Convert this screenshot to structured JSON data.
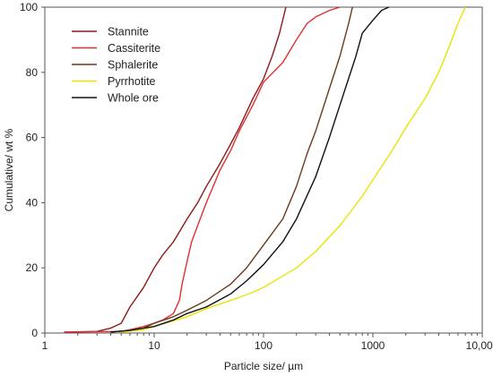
{
  "chart_data": {
    "type": "line",
    "xlabel": "Particle size/ µm",
    "ylabel": "Cumulative/ wt %",
    "xscale": "log",
    "xlim": [
      1,
      10000
    ],
    "ylim": [
      0,
      100
    ],
    "x_ticks": [
      1,
      10,
      100,
      1000,
      10000
    ],
    "x_tick_labels": [
      "1",
      "10",
      "100",
      "1000",
      "10,000"
    ],
    "y_ticks": [
      0,
      20,
      40,
      60,
      80,
      100
    ],
    "y_tick_labels": [
      "0",
      "20",
      "40",
      "60",
      "80",
      "100"
    ],
    "grid": false,
    "legend_position": "top-left",
    "series": [
      {
        "name": "Stannite",
        "color": "#8B1A1A",
        "points": [
          [
            1.5,
            0.3
          ],
          [
            3,
            0.5
          ],
          [
            4,
            1.5
          ],
          [
            5,
            3
          ],
          [
            6,
            8
          ],
          [
            8,
            14
          ],
          [
            10,
            20
          ],
          [
            12,
            24
          ],
          [
            15,
            28
          ],
          [
            20,
            35
          ],
          [
            25,
            40
          ],
          [
            30,
            45
          ],
          [
            40,
            52
          ],
          [
            50,
            58
          ],
          [
            60,
            63
          ],
          [
            80,
            72
          ],
          [
            100,
            78
          ],
          [
            120,
            85
          ],
          [
            140,
            92
          ],
          [
            160,
            100
          ]
        ]
      },
      {
        "name": "Cassiterite",
        "color": "#E03030",
        "points": [
          [
            1.5,
            0.3
          ],
          [
            5,
            0.5
          ],
          [
            6,
            1
          ],
          [
            8,
            2
          ],
          [
            10,
            3
          ],
          [
            12,
            4
          ],
          [
            15,
            6
          ],
          [
            17,
            10
          ],
          [
            18,
            15
          ],
          [
            20,
            22
          ],
          [
            22,
            28
          ],
          [
            25,
            33
          ],
          [
            30,
            40
          ],
          [
            40,
            50
          ],
          [
            50,
            56
          ],
          [
            60,
            62
          ],
          [
            80,
            70
          ],
          [
            100,
            77
          ],
          [
            150,
            83
          ],
          [
            200,
            90
          ],
          [
            250,
            95
          ],
          [
            300,
            97
          ],
          [
            400,
            99
          ],
          [
            500,
            100
          ]
        ]
      },
      {
        "name": "Sphalerite",
        "color": "#6B3A1A",
        "points": [
          [
            4,
            0.3
          ],
          [
            6,
            0.8
          ],
          [
            8,
            1.5
          ],
          [
            10,
            3
          ],
          [
            15,
            5
          ],
          [
            20,
            7
          ],
          [
            30,
            10
          ],
          [
            50,
            15
          ],
          [
            70,
            20
          ],
          [
            100,
            27
          ],
          [
            150,
            35
          ],
          [
            200,
            45
          ],
          [
            250,
            55
          ],
          [
            300,
            62
          ],
          [
            400,
            75
          ],
          [
            500,
            85
          ],
          [
            600,
            95
          ],
          [
            650,
            100
          ]
        ]
      },
      {
        "name": "Pyrrhotite",
        "color": "#E6E600",
        "points": [
          [
            5,
            0.3
          ],
          [
            8,
            1
          ],
          [
            10,
            2
          ],
          [
            20,
            5
          ],
          [
            30,
            7.5
          ],
          [
            50,
            10
          ],
          [
            80,
            12.5
          ],
          [
            100,
            14
          ],
          [
            200,
            20
          ],
          [
            300,
            25
          ],
          [
            500,
            33
          ],
          [
            800,
            42
          ],
          [
            1000,
            47
          ],
          [
            1500,
            56
          ],
          [
            2000,
            63
          ],
          [
            3000,
            72
          ],
          [
            4000,
            80
          ],
          [
            5000,
            88
          ],
          [
            6000,
            95
          ],
          [
            7000,
            100
          ]
        ]
      },
      {
        "name": "Whole ore",
        "color": "#111111",
        "points": [
          [
            4,
            0.3
          ],
          [
            6,
            0.8
          ],
          [
            8,
            1.5
          ],
          [
            10,
            2
          ],
          [
            15,
            4
          ],
          [
            20,
            6
          ],
          [
            30,
            8
          ],
          [
            50,
            12
          ],
          [
            70,
            16
          ],
          [
            100,
            21
          ],
          [
            150,
            28
          ],
          [
            200,
            35
          ],
          [
            300,
            48
          ],
          [
            400,
            60
          ],
          [
            500,
            70
          ],
          [
            700,
            85
          ],
          [
            800,
            92
          ],
          [
            1000,
            96
          ],
          [
            1200,
            99
          ],
          [
            1400,
            100
          ]
        ]
      }
    ]
  }
}
